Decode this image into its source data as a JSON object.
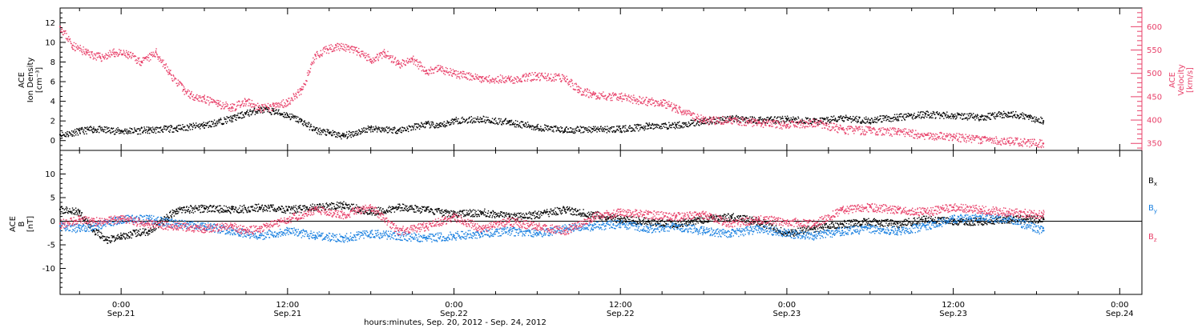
{
  "x_axis": {
    "title": "hours:minutes, Sep. 20, 2012 - Sep. 24, 2012",
    "ticks": [
      {
        "time": "0:00",
        "date": "Sep.21",
        "hour": 24
      },
      {
        "time": "12:00",
        "date": "Sep.21",
        "hour": 36
      },
      {
        "time": "0:00",
        "date": "Sep.22",
        "hour": 48
      },
      {
        "time": "12:00",
        "date": "Sep.22",
        "hour": 60
      },
      {
        "time": "0:00",
        "date": "Sep.23",
        "hour": 72
      },
      {
        "time": "12:00",
        "date": "Sep.23",
        "hour": 84
      },
      {
        "time": "0:00",
        "date": "Sep.24",
        "hour": 96
      }
    ]
  },
  "colors": {
    "density": "#000000",
    "velocity": "#e8416a",
    "bx": "#000000",
    "by": "#1a80e0",
    "bz": "#e8416a"
  },
  "chart_data": [
    {
      "type": "scatter",
      "panel": "top",
      "xlim_hours": [
        19.6,
        97.6
      ],
      "ylabel_left": [
        "ACE",
        "Ion Density",
        "[cm⁻³]"
      ],
      "ylabel_right": [
        "ACE",
        "Velocity",
        "[km/s]"
      ],
      "ylim_left": [
        -1,
        13.5
      ],
      "ylim_right": [
        335,
        640
      ],
      "yticks_left": [
        0,
        2,
        4,
        6,
        8,
        10,
        12
      ],
      "yticks_right": [
        350,
        400,
        450,
        500,
        550,
        600
      ],
      "series": [
        {
          "key": "density",
          "axis": "left",
          "x": [
            19.6,
            21.0,
            22.0,
            24.0,
            26.0,
            28.0,
            30.0,
            32.0,
            33.0,
            34.0,
            35.0,
            36.0,
            37.0,
            38.0,
            39.0,
            40.0,
            42.0,
            44.0,
            46.0,
            47.0,
            48.0,
            50.0,
            52.0,
            54.0,
            56.0,
            58.0,
            60.0,
            62.0,
            64.0,
            66.0,
            68.0,
            70.0,
            72.0,
            74.0,
            76.0,
            78.0,
            80.0,
            82.0,
            84.0,
            86.0,
            88.0,
            89.5,
            90.5
          ],
          "y": [
            0.6,
            1.0,
            1.2,
            1.0,
            1.1,
            1.3,
            1.6,
            2.3,
            2.8,
            3.2,
            3.0,
            2.6,
            2.0,
            1.1,
            0.8,
            0.5,
            1.3,
            1.1,
            1.7,
            1.5,
            2.1,
            2.2,
            1.9,
            1.4,
            1.1,
            1.2,
            1.2,
            1.5,
            1.6,
            2.0,
            2.3,
            2.1,
            2.2,
            2.0,
            2.3,
            2.1,
            2.4,
            2.7,
            2.6,
            2.4,
            2.8,
            2.4,
            2.0
          ]
        },
        {
          "key": "velocity",
          "axis": "right",
          "x": [
            19.6,
            20.5,
            21.5,
            22.5,
            23.5,
            24.5,
            25.5,
            26.5,
            27.5,
            28.5,
            29.0,
            30.0,
            31.0,
            32.0,
            33.0,
            34.0,
            35.0,
            36.0,
            37.0,
            38.0,
            39.5,
            41.0,
            42.0,
            43.0,
            44.0,
            45.0,
            46.0,
            47.0,
            48.0,
            50.0,
            52.0,
            54.0,
            56.0,
            57.0,
            58.0,
            60.0,
            62.0,
            63.0,
            64.0,
            66.0,
            68.0,
            70.0,
            72.0,
            74.0,
            76.0,
            78.0,
            80.0,
            82.0,
            84.0,
            86.0,
            88.0,
            90.5
          ],
          "y": [
            600,
            560,
            545,
            535,
            545,
            540,
            525,
            545,
            500,
            465,
            455,
            445,
            435,
            428,
            440,
            425,
            430,
            440,
            465,
            540,
            560,
            548,
            530,
            545,
            520,
            530,
            505,
            510,
            500,
            490,
            488,
            495,
            490,
            465,
            455,
            450,
            440,
            438,
            425,
            400,
            400,
            395,
            390,
            395,
            380,
            378,
            375,
            368,
            365,
            358,
            355,
            350
          ]
        }
      ]
    },
    {
      "type": "scatter",
      "panel": "bottom",
      "xlim_hours": [
        19.6,
        97.6
      ],
      "ylabel_left": [
        "ACE",
        "B",
        "[nT]"
      ],
      "ylim": [
        -15.5,
        15
      ],
      "yticks": [
        -10,
        -5,
        0,
        5,
        10
      ],
      "legend": [
        "B",
        "B",
        "B"
      ],
      "legend_sub": [
        "x",
        "y",
        "z"
      ],
      "series": [
        {
          "key": "bx",
          "x": [
            19.6,
            21.0,
            22.0,
            23.0,
            24.0,
            26.0,
            28.0,
            30.0,
            32.0,
            34.0,
            36.0,
            38.0,
            40.0,
            42.0,
            44.0,
            46.0,
            48.0,
            50.0,
            52.0,
            54.0,
            56.0,
            58.0,
            60.0,
            62.0,
            64.0,
            66.0,
            68.0,
            70.0,
            72.0,
            74.0,
            76.0,
            78.0,
            80.0,
            82.0,
            84.0,
            86.0,
            88.0,
            90.5
          ],
          "y": [
            2.5,
            2.0,
            -2.0,
            -4.0,
            -3.0,
            -2.0,
            2.5,
            2.8,
            2.5,
            3.0,
            2.5,
            3.0,
            3.5,
            2.0,
            3.0,
            2.5,
            1.5,
            2.0,
            1.0,
            1.5,
            2.5,
            1.5,
            0.5,
            0.0,
            -0.5,
            0.5,
            1.0,
            0.0,
            -2.5,
            -1.5,
            -0.5,
            0.0,
            -0.5,
            0.5,
            0.0,
            0.0,
            0.5,
            0.5
          ]
        },
        {
          "key": "by",
          "x": [
            19.6,
            21.0,
            22.0,
            24.0,
            26.0,
            28.0,
            30.0,
            32.0,
            34.0,
            36.0,
            38.0,
            40.0,
            42.0,
            44.0,
            46.0,
            48.0,
            50.0,
            52.0,
            54.0,
            56.0,
            58.0,
            60.0,
            62.0,
            64.0,
            66.0,
            68.0,
            70.0,
            72.0,
            74.0,
            76.0,
            78.0,
            80.0,
            82.0,
            84.0,
            86.0,
            88.0,
            90.5
          ],
          "y": [
            -1.0,
            -1.5,
            -1.0,
            0.5,
            0.5,
            -0.5,
            -1.0,
            -2.0,
            -3.0,
            -2.0,
            -3.0,
            -3.5,
            -2.5,
            -3.0,
            -3.5,
            -3.0,
            -2.5,
            -2.0,
            -2.5,
            -1.5,
            -1.0,
            -0.5,
            -1.5,
            -1.0,
            -2.0,
            -2.5,
            -1.5,
            -2.5,
            -3.0,
            -2.0,
            -1.5,
            -2.0,
            -1.0,
            0.5,
            1.0,
            0.5,
            -2.0
          ]
        },
        {
          "key": "bz",
          "x": [
            19.6,
            21.0,
            22.0,
            24.0,
            26.0,
            28.0,
            30.0,
            32.0,
            33.0,
            34.0,
            36.0,
            38.0,
            40.0,
            42.0,
            44.0,
            46.0,
            48.0,
            50.0,
            52.0,
            54.0,
            56.0,
            58.0,
            60.0,
            62.0,
            64.0,
            66.0,
            68.0,
            70.0,
            72.0,
            74.0,
            76.0,
            78.0,
            80.0,
            82.0,
            84.0,
            86.0,
            88.0,
            90.5
          ],
          "y": [
            -0.5,
            0.5,
            0.0,
            0.5,
            -0.5,
            -1.0,
            -1.5,
            -1.0,
            -2.0,
            -1.5,
            0.5,
            2.5,
            1.5,
            3.0,
            -2.0,
            -1.0,
            1.0,
            -1.5,
            0.0,
            -1.0,
            -2.0,
            1.0,
            2.0,
            1.5,
            1.0,
            1.5,
            -0.5,
            0.5,
            0.0,
            -0.5,
            2.5,
            3.0,
            2.5,
            2.0,
            3.0,
            2.5,
            2.0,
            1.5
          ]
        }
      ]
    }
  ]
}
